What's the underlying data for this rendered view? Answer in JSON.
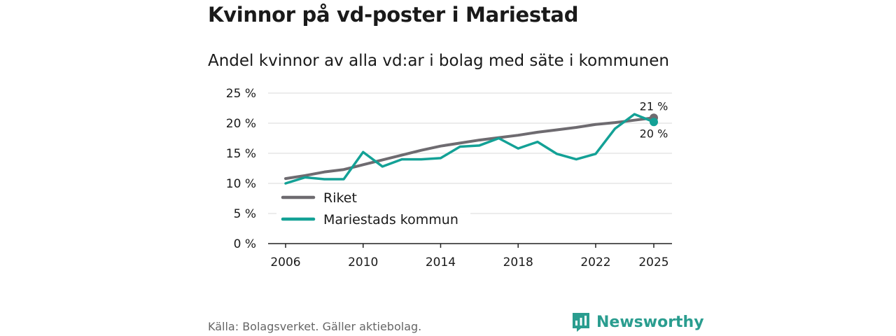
{
  "title": "Kvinnor på vd-poster i Mariestad",
  "subtitle": "Andel kvinnor av alla vd:ar i bolag med säte i kommunen",
  "source": "Källa: Bolagsverket. Gäller aktiebolag.",
  "brand": "Newsworthy",
  "colors": {
    "riket": "#6e6b70",
    "kommun": "#13a196",
    "grid": "#d9d9d9",
    "axis": "#222222",
    "brand": "#2a9d8f"
  },
  "chart_data": {
    "type": "line",
    "title": "Kvinnor på vd-poster i Mariestad",
    "subtitle": "Andel kvinnor av alla vd:ar i bolag med säte i kommunen",
    "xlabel": "",
    "ylabel": "",
    "x": [
      2006,
      2007,
      2008,
      2009,
      2010,
      2011,
      2012,
      2013,
      2014,
      2015,
      2016,
      2017,
      2018,
      2019,
      2020,
      2021,
      2022,
      2023,
      2024,
      2025
    ],
    "xlim": [
      2006,
      2025
    ],
    "ylim": [
      0,
      25
    ],
    "xticks": [
      2006,
      2010,
      2014,
      2018,
      2022,
      2025
    ],
    "yticks": [
      0,
      5,
      10,
      15,
      20,
      25
    ],
    "ytick_labels": [
      "0 %",
      "5 %",
      "10 %",
      "15 %",
      "20 %",
      "25 %"
    ],
    "grid": true,
    "legend_position": "lower-left",
    "series": [
      {
        "name": "Riket",
        "key": "riket",
        "values": [
          10.8,
          11.3,
          11.9,
          12.3,
          13.1,
          13.9,
          14.7,
          15.5,
          16.2,
          16.7,
          17.2,
          17.6,
          18.0,
          18.5,
          18.9,
          19.3,
          19.8,
          20.1,
          20.5,
          20.9
        ],
        "end_label": "21 %"
      },
      {
        "name": "Mariestads kommun",
        "key": "kommun",
        "values": [
          10.0,
          11.0,
          10.7,
          10.7,
          15.2,
          12.8,
          14.0,
          14.0,
          14.2,
          16.1,
          16.3,
          17.5,
          15.8,
          16.9,
          14.9,
          14.0,
          14.9,
          19.1,
          21.5,
          20.2
        ],
        "end_label": "20 %"
      }
    ]
  }
}
